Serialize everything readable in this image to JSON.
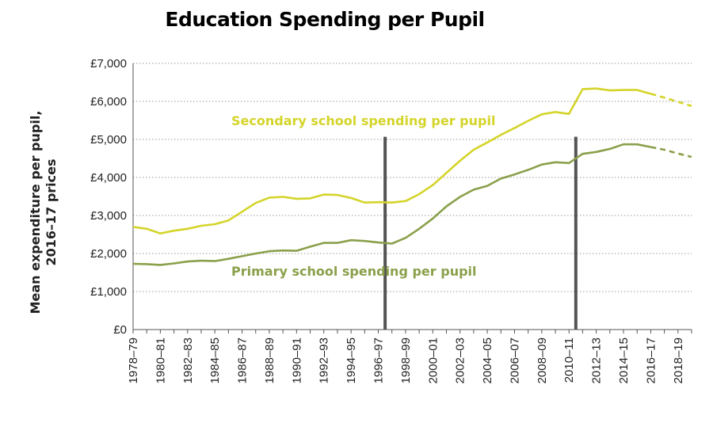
{
  "chart_data": {
    "type": "line",
    "title": "Education Spending per Pupil",
    "ylabel_lines": [
      "Mean expenditure per pupil,",
      "2016–17 prices"
    ],
    "xlabel": "",
    "ylim": [
      0,
      7000
    ],
    "yticks": [
      "£0",
      "£1,000",
      "£2,000",
      "£3,000",
      "£4,000",
      "£5,000",
      "£6,000",
      "£7,000"
    ],
    "x": [
      "1978–79",
      "1979–80",
      "1980–81",
      "1981–82",
      "1982–83",
      "1983–84",
      "1984–85",
      "1985–86",
      "1986–87",
      "1987–88",
      "1988–89",
      "1989–90",
      "1990–91",
      "1991–92",
      "1992–93",
      "1993–94",
      "1994–95",
      "1995–96",
      "1996–97",
      "1997–98",
      "1998–99",
      "1999–00",
      "2000–01",
      "2001–02",
      "2002–03",
      "2003–04",
      "2004–05",
      "2005–06",
      "2006–07",
      "2007–08",
      "2008–09",
      "2009–10",
      "2010–11",
      "2011–12",
      "2012–13",
      "2013–14",
      "2014–15",
      "2015–16",
      "2016–17",
      "2017–18",
      "2018–19",
      "2019–20"
    ],
    "xtick_labels": [
      "1978–79",
      "1980–81",
      "1982–83",
      "1984–85",
      "1986–87",
      "1988–89",
      "1990–91",
      "1992–93",
      "1994–95",
      "1996–97",
      "1998–99",
      "2000–01",
      "2002–03",
      "2004–05",
      "2006–07",
      "2008–09",
      "2010–11",
      "2012–13",
      "2014–15",
      "2016–17",
      "2018–19"
    ],
    "series": [
      {
        "name": "Secondary school spending per pupil",
        "color": "#d4d42a",
        "values": [
          2700,
          2650,
          2530,
          2600,
          2650,
          2730,
          2770,
          2870,
          3100,
          3330,
          3470,
          3490,
          3440,
          3450,
          3550,
          3540,
          3460,
          3340,
          3350,
          3340,
          3380,
          3560,
          3800,
          4120,
          4440,
          4730,
          4920,
          5120,
          5300,
          5490,
          5660,
          5720,
          5670,
          6320,
          6340,
          6290,
          6300,
          6300,
          6200,
          6100,
          5990,
          5880
        ],
        "projected_from_index": 38
      },
      {
        "name": "Primary school spending per pupil",
        "color": "#8aa04a",
        "values": [
          1730,
          1720,
          1700,
          1740,
          1790,
          1810,
          1800,
          1860,
          1930,
          2000,
          2060,
          2080,
          2070,
          2180,
          2280,
          2280,
          2350,
          2330,
          2290,
          2260,
          2410,
          2650,
          2920,
          3240,
          3490,
          3680,
          3780,
          3970,
          4080,
          4200,
          4340,
          4400,
          4380,
          4620,
          4670,
          4750,
          4870,
          4870,
          4800,
          4730,
          4630,
          4540
        ],
        "projected_from_index": 38
      }
    ],
    "annotations": [
      {
        "text": "Secondary school spending per pupil",
        "series": 0
      },
      {
        "text": "Primary school spending per pupil",
        "series": 1
      }
    ],
    "vertical_markers": [
      {
        "between": [
          "1996–97",
          "1997–98"
        ],
        "color": "#555555"
      },
      {
        "between": [
          "2010–11",
          "2011–12"
        ],
        "color": "#555555"
      }
    ],
    "grid": "horizontal-dotted",
    "legend": "none"
  }
}
